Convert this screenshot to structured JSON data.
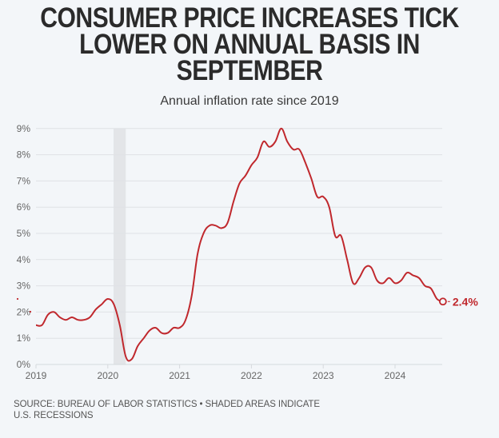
{
  "header": {
    "title": "CONSUMER PRICE INCREASES TICK\nLOWER ON ANNUAL BASIS IN\nSEPTEMBER",
    "subtitle": "Annual inflation rate since 2019"
  },
  "footer": {
    "source": "SOURCE: BUREAU OF LABOR STATISTICS • SHADED AREAS INDICATE\nU.S. RECESSIONS"
  },
  "colors": {
    "line": "#c0282d",
    "grid": "#dfe2e6",
    "recession": "#e3e5e8",
    "axis_text": "#666666",
    "background": "#f3f6f9"
  },
  "chart_data": {
    "type": "line",
    "title": "CONSUMER PRICE INCREASES TICK LOWER ON ANNUAL BASIS IN SEPTEMBER",
    "subtitle": "Annual inflation rate since 2019",
    "xlabel": "",
    "ylabel": "",
    "x_start": "2019-01",
    "x_frequency": "monthly",
    "xlim": [
      2019.0,
      2024.67
    ],
    "ylim": [
      0,
      9
    ],
    "yticks": [
      0,
      1,
      2,
      3,
      4,
      5,
      6,
      7,
      8,
      9
    ],
    "ytick_labels": [
      "0%",
      "1%",
      "2%",
      "3%",
      "4%",
      "5%",
      "6%",
      "7%",
      "8%",
      "9%"
    ],
    "xticks": [
      2019,
      2020,
      2021,
      2022,
      2023,
      2024
    ],
    "xtick_labels": [
      "2019",
      "2020",
      "2021",
      "2022",
      "2023",
      "2024"
    ],
    "grid": true,
    "legend": "none",
    "recessions": [
      {
        "start": 2020.08,
        "end": 2020.25
      }
    ],
    "series": [
      {
        "name": "Annual inflation rate (%)",
        "values": [
          1.5,
          1.5,
          1.9,
          2.0,
          1.8,
          1.7,
          1.8,
          1.7,
          1.7,
          1.8,
          2.1,
          2.3,
          2.5,
          2.3,
          1.5,
          0.3,
          0.2,
          0.7,
          1.0,
          1.3,
          1.4,
          1.2,
          1.2,
          1.4,
          1.4,
          1.7,
          2.6,
          4.2,
          5.0,
          5.3,
          5.3,
          5.2,
          5.4,
          6.2,
          6.9,
          7.2,
          7.6,
          7.9,
          8.5,
          8.3,
          8.5,
          9.0,
          8.5,
          8.2,
          8.2,
          7.7,
          7.1,
          6.4,
          6.4,
          6.0,
          4.9,
          4.9,
          4.0,
          3.1,
          3.3,
          3.7,
          3.7,
          3.2,
          3.1,
          3.3,
          3.1,
          3.2,
          3.5,
          3.4,
          3.3,
          3.0,
          2.9,
          2.5,
          2.4
        ]
      }
    ],
    "annotations": [
      {
        "text": "2.4%",
        "at": "2024-09",
        "value": 2.4,
        "marker": "hollow-circle"
      }
    ]
  }
}
